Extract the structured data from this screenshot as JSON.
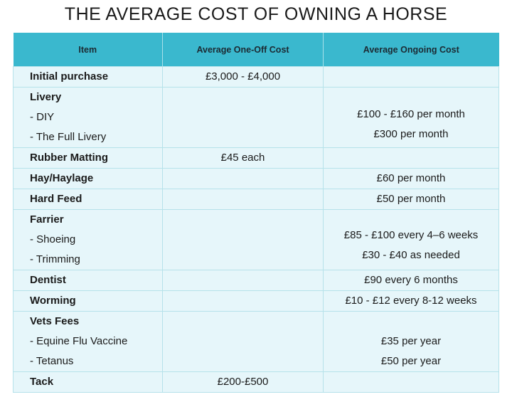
{
  "title": "THE AVERAGE COST OF OWNING A HORSE",
  "table": {
    "headers": [
      "Item",
      "Average One-Off Cost",
      "Average Ongoing Cost"
    ],
    "rows": [
      {
        "item": "Initial purchase",
        "one_off": "£3,000 - £4,000",
        "ongoing": ""
      },
      {
        "item": "Livery",
        "subs": [
          "- DIY",
          "- The Full Livery"
        ],
        "one_off": "",
        "ongoing_lines": [
          "£100 - £160 per month",
          "£300 per month"
        ]
      },
      {
        "item": "Rubber Matting",
        "one_off": "£45 each",
        "ongoing": ""
      },
      {
        "item": "Hay/Haylage",
        "one_off": "",
        "ongoing": "£60 per month"
      },
      {
        "item": "Hard Feed",
        "one_off": "",
        "ongoing": "£50 per month"
      },
      {
        "item": "Farrier",
        "subs": [
          "- Shoeing",
          "- Trimming"
        ],
        "one_off": "",
        "ongoing_lines": [
          "£85 - £100 every 4–6 weeks",
          "£30 - £40 as needed"
        ]
      },
      {
        "item": "Dentist",
        "one_off": "",
        "ongoing": "£90 every 6 months"
      },
      {
        "item": "Worming",
        "one_off": "",
        "ongoing": "£10 - £12 every 8-12 weeks"
      },
      {
        "item": "Vets Fees",
        "subs": [
          "- Equine Flu Vaccine",
          "- Tetanus"
        ],
        "one_off": "",
        "ongoing_lines": [
          "£35 per year",
          "£50 per year"
        ]
      },
      {
        "item": "Tack",
        "one_off": "£200-£500",
        "ongoing": ""
      }
    ]
  }
}
